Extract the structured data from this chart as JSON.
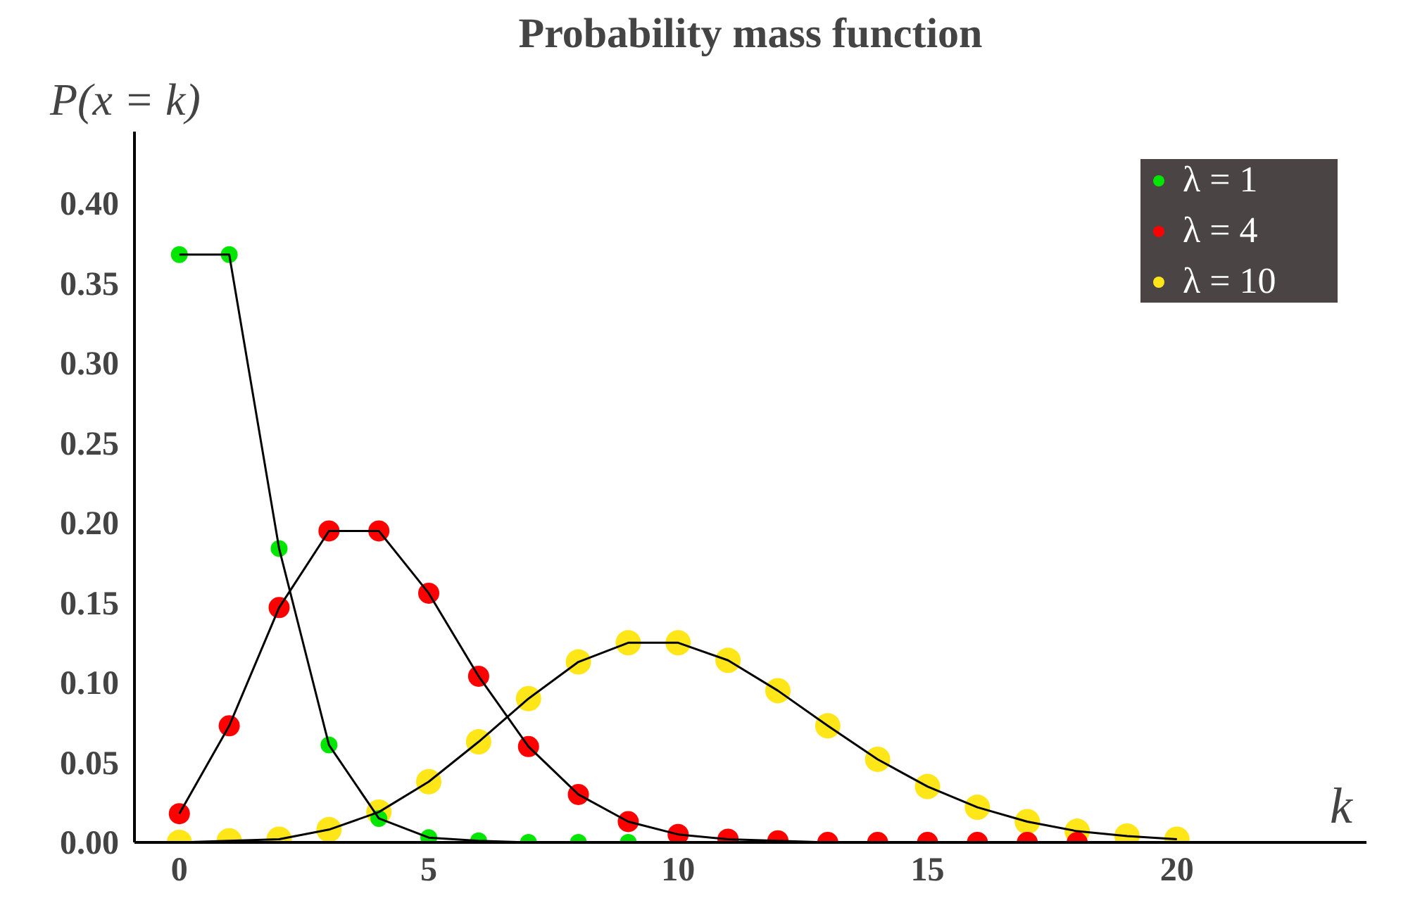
{
  "chart_data": {
    "type": "line",
    "title": "Probability mass function",
    "xlabel": "k",
    "ylabel": "P(x = k)",
    "xlim": [
      -0.9,
      23.8
    ],
    "ylim": [
      0,
      0.445
    ],
    "xticks": [
      0,
      5,
      10,
      15,
      20
    ],
    "yticks": [
      {
        "value": 0,
        "label": "0.00"
      },
      {
        "value": 0.05,
        "label": "0.05"
      },
      {
        "value": 0.1,
        "label": "0.10"
      },
      {
        "value": 0.15,
        "label": "0.15"
      },
      {
        "value": 0.2,
        "label": "0.20"
      },
      {
        "value": 0.25,
        "label": "0.25"
      },
      {
        "value": 0.3,
        "label": "0.30"
      },
      {
        "value": 0.35,
        "label": "0.35"
      },
      {
        "value": 0.4,
        "label": "0.40"
      }
    ],
    "series": [
      {
        "name": "λ = 1",
        "color": "#00e600",
        "x": [
          0,
          1,
          2,
          3,
          4,
          5,
          6,
          7,
          8,
          9
        ],
        "values": [
          0.368,
          0.368,
          0.184,
          0.061,
          0.015,
          0.003,
          0.001,
          0.0,
          0.0,
          0.0
        ]
      },
      {
        "name": "λ = 4",
        "color": "#ff0000",
        "x": [
          0,
          1,
          2,
          3,
          4,
          5,
          6,
          7,
          8,
          9,
          10,
          11,
          12,
          13,
          14,
          15,
          16,
          17,
          18
        ],
        "values": [
          0.018,
          0.073,
          0.147,
          0.195,
          0.195,
          0.156,
          0.104,
          0.06,
          0.03,
          0.013,
          0.005,
          0.002,
          0.001,
          0.0,
          0.0,
          0.0,
          0.0,
          0.0,
          0.0
        ]
      },
      {
        "name": "λ = 10",
        "color": "#ffe619",
        "x": [
          0,
          1,
          2,
          3,
          4,
          5,
          6,
          7,
          8,
          9,
          10,
          11,
          12,
          13,
          14,
          15,
          16,
          17,
          18,
          19,
          20
        ],
        "values": [
          0.0,
          0.001,
          0.002,
          0.008,
          0.019,
          0.038,
          0.063,
          0.09,
          0.113,
          0.125,
          0.125,
          0.114,
          0.095,
          0.073,
          0.052,
          0.035,
          0.022,
          0.013,
          0.007,
          0.004,
          0.002
        ]
      }
    ],
    "marker": "circle",
    "line_style": "solid",
    "grid": false,
    "legend": "top right"
  }
}
